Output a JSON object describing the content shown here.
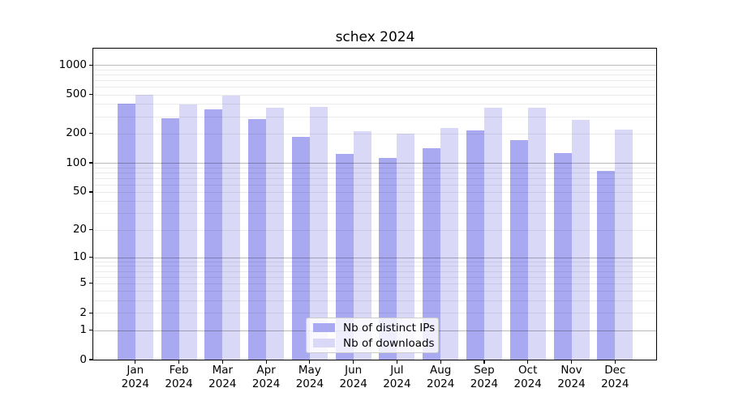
{
  "chart_data": {
    "type": "bar",
    "title": "schex 2024",
    "yscale": "log1p",
    "ylim": [
      0,
      1400
    ],
    "grid": "horizontal-on-top",
    "legend_position": "lower center",
    "year_label": "2024",
    "categories": [
      "Jan",
      "Feb",
      "Mar",
      "Apr",
      "May",
      "Jun",
      "Jul",
      "Aug",
      "Sep",
      "Oct",
      "Nov",
      "Dec"
    ],
    "y_ticks": [
      0,
      1,
      2,
      5,
      10,
      20,
      50,
      100,
      200,
      500,
      1000
    ],
    "y_major_gridlines": [
      1,
      10,
      100,
      1000
    ],
    "y_minor_gridlines": [
      2,
      3,
      4,
      5,
      6,
      7,
      8,
      9,
      20,
      30,
      40,
      50,
      60,
      70,
      80,
      90,
      200,
      300,
      400,
      500,
      600,
      700,
      800,
      900
    ],
    "series": [
      {
        "name": "Nb of distinct IPs",
        "color": "#a9a9f2",
        "values": [
          400,
          286,
          356,
          280,
          186,
          124,
          113,
          140,
          215,
          170,
          125,
          83
        ]
      },
      {
        "name": "Nb of downloads",
        "color": "#d9d9f7",
        "values": [
          500,
          394,
          490,
          364,
          375,
          212,
          201,
          226,
          370,
          364,
          275,
          220
        ]
      }
    ]
  },
  "colors": {
    "distinct_ips": "#a9a9f2",
    "downloads": "#d9d9f7",
    "grid_major": "rgba(0,0,0,0.27)",
    "grid_minor": "rgba(0,0,0,0.08)",
    "spine": "#000000",
    "text": "#000000",
    "legend_border": "#cccccc",
    "legend_bg": "rgba(255,255,255,0.8)"
  }
}
